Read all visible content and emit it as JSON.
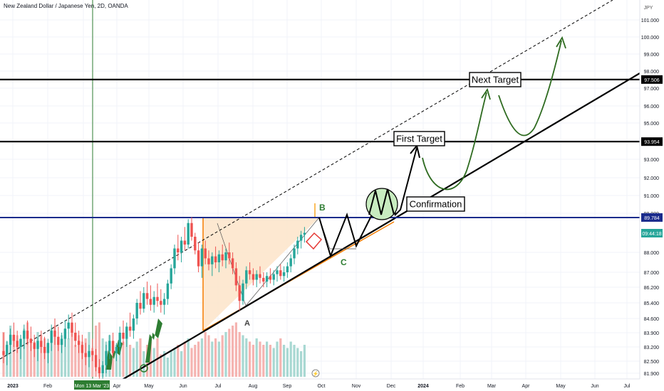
{
  "header": {
    "title": "New Zealand Dollar / Japanese Yen, 2D, OANDA"
  },
  "price_axis": {
    "currency": "JPY",
    "current_time": "09:44:18",
    "crosshair_date": "Mon 13 Mar '23",
    "ticks": [
      "101.000",
      "100.000",
      "99.000",
      "98.000",
      "97.000",
      "96.000",
      "95.000",
      "94.000",
      "93.000",
      "92.000",
      "91.000",
      "90.000",
      "88.000",
      "87.000",
      "86.200",
      "85.400",
      "84.600",
      "83.900",
      "83.200",
      "82.500",
      "81.900"
    ]
  },
  "time_axis": {
    "ticks": [
      "2023",
      "Feb",
      "Mar",
      "Apr",
      "May",
      "Jun",
      "Jul",
      "Aug",
      "Sep",
      "Oct",
      "Nov",
      "Dec",
      "2024",
      "Feb",
      "Mar",
      "Apr",
      "May",
      "Jun",
      "Jul"
    ]
  },
  "levels": [
    {
      "label": "97.506",
      "color": "#000000"
    },
    {
      "label": "93.954",
      "color": "#000000"
    },
    {
      "label": "89.784",
      "color": "#1a2b8c"
    }
  ],
  "annotations": {
    "next_target": "Next Target",
    "first_target": "First Target",
    "confirmation": "Confirmation",
    "wave_a": "A",
    "wave_b": "B",
    "wave_c": "C"
  },
  "colors": {
    "up": "#26a69a",
    "down": "#ef5350",
    "triangle_fill": "#fde6cc",
    "projection": "#2e6b20",
    "highlight_circle": "#c8ecc0",
    "crosshair": "#2e7d32"
  },
  "chart_data": {
    "type": "candlestick",
    "symbol": "NZDJPY",
    "timeframe": "2D",
    "broker": "OANDA",
    "candles": [
      {
        "o": 83.0,
        "h": 83.9,
        "l": 82.4,
        "c": 82.8
      },
      {
        "o": 82.8,
        "h": 83.5,
        "l": 82.3,
        "c": 83.3
      },
      {
        "o": 83.3,
        "h": 84.1,
        "l": 82.9,
        "c": 83.8
      },
      {
        "o": 83.8,
        "h": 84.4,
        "l": 83.2,
        "c": 83.5
      },
      {
        "o": 83.5,
        "h": 84.0,
        "l": 82.9,
        "c": 83.2
      },
      {
        "o": 83.2,
        "h": 83.8,
        "l": 82.6,
        "c": 83.6
      },
      {
        "o": 83.6,
        "h": 84.3,
        "l": 83.1,
        "c": 84.0
      },
      {
        "o": 84.0,
        "h": 84.5,
        "l": 83.3,
        "c": 83.6
      },
      {
        "o": 83.6,
        "h": 84.2,
        "l": 83.0,
        "c": 83.4
      },
      {
        "o": 83.4,
        "h": 83.8,
        "l": 82.7,
        "c": 83.1
      },
      {
        "o": 83.1,
        "h": 83.7,
        "l": 82.5,
        "c": 83.5
      },
      {
        "o": 83.5,
        "h": 84.0,
        "l": 82.9,
        "c": 83.2
      },
      {
        "o": 83.2,
        "h": 83.7,
        "l": 82.6,
        "c": 82.9
      },
      {
        "o": 82.9,
        "h": 83.6,
        "l": 82.4,
        "c": 83.4
      },
      {
        "o": 83.4,
        "h": 84.3,
        "l": 83.0,
        "c": 84.0
      },
      {
        "o": 84.0,
        "h": 84.6,
        "l": 83.3,
        "c": 83.7
      },
      {
        "o": 83.7,
        "h": 84.2,
        "l": 83.0,
        "c": 83.3
      },
      {
        "o": 83.3,
        "h": 83.9,
        "l": 82.9,
        "c": 83.6
      },
      {
        "o": 83.6,
        "h": 84.5,
        "l": 83.2,
        "c": 84.1
      },
      {
        "o": 84.1,
        "h": 84.8,
        "l": 83.6,
        "c": 84.4
      },
      {
        "o": 84.4,
        "h": 84.9,
        "l": 83.7,
        "c": 83.9
      },
      {
        "o": 83.9,
        "h": 84.4,
        "l": 83.2,
        "c": 83.5
      },
      {
        "o": 83.5,
        "h": 84.0,
        "l": 82.9,
        "c": 83.3
      },
      {
        "o": 83.3,
        "h": 83.8,
        "l": 82.6,
        "c": 82.9
      },
      {
        "o": 82.9,
        "h": 83.4,
        "l": 82.3,
        "c": 82.7
      },
      {
        "o": 82.7,
        "h": 83.3,
        "l": 82.2,
        "c": 83.0
      },
      {
        "o": 83.0,
        "h": 83.6,
        "l": 82.5,
        "c": 82.8
      },
      {
        "o": 82.8,
        "h": 83.1,
        "l": 82.0,
        "c": 82.2
      },
      {
        "o": 82.2,
        "h": 82.6,
        "l": 81.6,
        "c": 81.9
      },
      {
        "o": 81.9,
        "h": 82.5,
        "l": 81.6,
        "c": 82.3
      },
      {
        "o": 82.3,
        "h": 83.3,
        "l": 81.9,
        "c": 83.0
      },
      {
        "o": 83.0,
        "h": 83.8,
        "l": 82.6,
        "c": 83.5
      },
      {
        "o": 83.5,
        "h": 83.9,
        "l": 82.7,
        "c": 82.9
      },
      {
        "o": 82.9,
        "h": 83.4,
        "l": 82.5,
        "c": 83.2
      },
      {
        "o": 83.2,
        "h": 84.2,
        "l": 82.9,
        "c": 83.9
      },
      {
        "o": 83.9,
        "h": 84.5,
        "l": 83.3,
        "c": 83.6
      },
      {
        "o": 83.6,
        "h": 84.4,
        "l": 83.2,
        "c": 84.2
      },
      {
        "o": 84.2,
        "h": 84.9,
        "l": 83.7,
        "c": 84.0
      },
      {
        "o": 84.0,
        "h": 84.8,
        "l": 83.6,
        "c": 84.6
      },
      {
        "o": 84.6,
        "h": 85.6,
        "l": 84.3,
        "c": 85.4
      },
      {
        "o": 85.4,
        "h": 86.0,
        "l": 84.8,
        "c": 85.1
      },
      {
        "o": 85.1,
        "h": 86.2,
        "l": 84.9,
        "c": 85.9
      },
      {
        "o": 85.9,
        "h": 86.5,
        "l": 85.3,
        "c": 85.6
      },
      {
        "o": 85.6,
        "h": 86.3,
        "l": 85.0,
        "c": 85.3
      },
      {
        "o": 85.3,
        "h": 86.0,
        "l": 84.9,
        "c": 85.7
      },
      {
        "o": 85.7,
        "h": 86.4,
        "l": 85.2,
        "c": 85.5
      },
      {
        "o": 85.5,
        "h": 86.1,
        "l": 84.9,
        "c": 85.3
      },
      {
        "o": 85.3,
        "h": 85.9,
        "l": 84.8,
        "c": 85.6
      },
      {
        "o": 85.6,
        "h": 86.6,
        "l": 85.3,
        "c": 86.4
      },
      {
        "o": 86.4,
        "h": 87.4,
        "l": 86.1,
        "c": 87.2
      },
      {
        "o": 87.2,
        "h": 88.4,
        "l": 86.9,
        "c": 88.2
      },
      {
        "o": 88.2,
        "h": 88.9,
        "l": 87.6,
        "c": 88.0
      },
      {
        "o": 88.0,
        "h": 88.8,
        "l": 87.5,
        "c": 88.6
      },
      {
        "o": 88.6,
        "h": 89.3,
        "l": 88.1,
        "c": 88.4
      },
      {
        "o": 88.4,
        "h": 89.7,
        "l": 88.2,
        "c": 89.5
      },
      {
        "o": 89.5,
        "h": 89.8,
        "l": 88.6,
        "c": 88.8
      },
      {
        "o": 88.8,
        "h": 89.0,
        "l": 87.9,
        "c": 88.1
      },
      {
        "o": 88.1,
        "h": 88.5,
        "l": 87.0,
        "c": 87.3
      },
      {
        "o": 87.3,
        "h": 88.4,
        "l": 86.7,
        "c": 88.2
      },
      {
        "o": 88.2,
        "h": 88.6,
        "l": 87.4,
        "c": 87.7
      },
      {
        "o": 87.7,
        "h": 88.1,
        "l": 87.1,
        "c": 87.4
      },
      {
        "o": 87.4,
        "h": 88.0,
        "l": 86.8,
        "c": 87.8
      },
      {
        "o": 87.8,
        "h": 88.3,
        "l": 87.2,
        "c": 87.5
      },
      {
        "o": 87.5,
        "h": 88.1,
        "l": 87.0,
        "c": 87.9
      },
      {
        "o": 87.9,
        "h": 88.4,
        "l": 87.3,
        "c": 87.6
      },
      {
        "o": 87.6,
        "h": 88.2,
        "l": 87.2,
        "c": 88.0
      },
      {
        "o": 88.0,
        "h": 88.5,
        "l": 87.4,
        "c": 87.7
      },
      {
        "o": 87.7,
        "h": 88.0,
        "l": 86.9,
        "c": 87.2
      },
      {
        "o": 87.2,
        "h": 87.5,
        "l": 86.0,
        "c": 86.3
      },
      {
        "o": 86.3,
        "h": 86.8,
        "l": 85.0,
        "c": 85.5
      },
      {
        "o": 85.5,
        "h": 86.6,
        "l": 85.3,
        "c": 86.4
      },
      {
        "o": 86.4,
        "h": 87.3,
        "l": 86.1,
        "c": 87.1
      },
      {
        "o": 87.1,
        "h": 87.5,
        "l": 86.6,
        "c": 86.9
      },
      {
        "o": 86.9,
        "h": 87.2,
        "l": 86.3,
        "c": 86.6
      },
      {
        "o": 86.6,
        "h": 87.1,
        "l": 86.2,
        "c": 86.9
      },
      {
        "o": 86.9,
        "h": 87.3,
        "l": 86.4,
        "c": 86.7
      },
      {
        "o": 86.7,
        "h": 87.0,
        "l": 86.2,
        "c": 86.5
      },
      {
        "o": 86.5,
        "h": 87.0,
        "l": 86.2,
        "c": 86.8
      },
      {
        "o": 86.8,
        "h": 87.2,
        "l": 86.4,
        "c": 86.6
      },
      {
        "o": 86.6,
        "h": 87.1,
        "l": 86.3,
        "c": 86.9
      },
      {
        "o": 86.9,
        "h": 87.3,
        "l": 86.5,
        "c": 87.1
      },
      {
        "o": 87.1,
        "h": 87.4,
        "l": 86.6,
        "c": 86.8
      },
      {
        "o": 86.8,
        "h": 87.3,
        "l": 86.5,
        "c": 87.0
      },
      {
        "o": 87.0,
        "h": 87.5,
        "l": 86.7,
        "c": 87.3
      },
      {
        "o": 87.3,
        "h": 87.9,
        "l": 87.0,
        "c": 87.7
      },
      {
        "o": 87.7,
        "h": 88.4,
        "l": 87.4,
        "c": 88.2
      },
      {
        "o": 88.2,
        "h": 88.8,
        "l": 87.9,
        "c": 88.6
      },
      {
        "o": 88.6,
        "h": 89.1,
        "l": 88.2,
        "c": 88.9
      },
      {
        "o": 88.9,
        "h": 89.3,
        "l": 88.5,
        "c": 89.0
      }
    ],
    "volume": [
      0.7,
      0.55,
      0.8,
      0.6,
      0.65,
      0.5,
      0.75,
      0.85,
      0.6,
      0.55,
      0.7,
      0.65,
      0.6,
      0.5,
      0.75,
      0.8,
      0.55,
      0.65,
      0.7,
      0.6,
      0.75,
      0.5,
      0.65,
      0.55,
      0.6,
      0.7,
      0.45,
      0.8,
      0.85,
      0.6,
      0.55,
      0.65,
      0.4,
      0.5,
      0.45,
      0.55,
      0.6,
      0.5,
      0.45,
      0.55,
      0.6,
      0.4,
      0.5,
      0.55,
      0.45,
      0.6,
      0.35,
      0.4,
      0.3,
      0.4,
      0.45,
      0.5,
      0.4,
      0.55,
      0.6,
      0.45,
      0.5,
      0.55,
      0.6,
      0.7,
      0.65,
      0.55,
      0.6,
      0.55,
      0.65,
      0.7,
      0.75,
      0.8,
      0.85,
      0.7,
      0.65,
      0.6,
      0.55,
      0.5,
      0.6,
      0.55,
      0.5,
      0.55,
      0.5,
      0.45,
      0.55,
      0.6,
      0.5,
      0.45,
      0.55,
      0.5,
      0.45,
      0.4,
      0.5
    ],
    "price_ticks": [
      101.0,
      100.0,
      99.0,
      98.0,
      97.0,
      96.0,
      95.0,
      94.0,
      93.0,
      92.0,
      91.0,
      90.0,
      88.0,
      87.0,
      86.2,
      85.4,
      84.6,
      83.9,
      83.2,
      82.5,
      81.9
    ],
    "horizontal_levels": [
      97.506,
      93.954,
      89.784
    ],
    "projection_path": [
      88.7,
      89.784,
      88.0,
      89.784,
      88.2,
      89.784,
      89.6,
      89.784,
      89.7,
      89.784,
      93.6
    ],
    "ylim": [
      81.6,
      101.6
    ]
  }
}
